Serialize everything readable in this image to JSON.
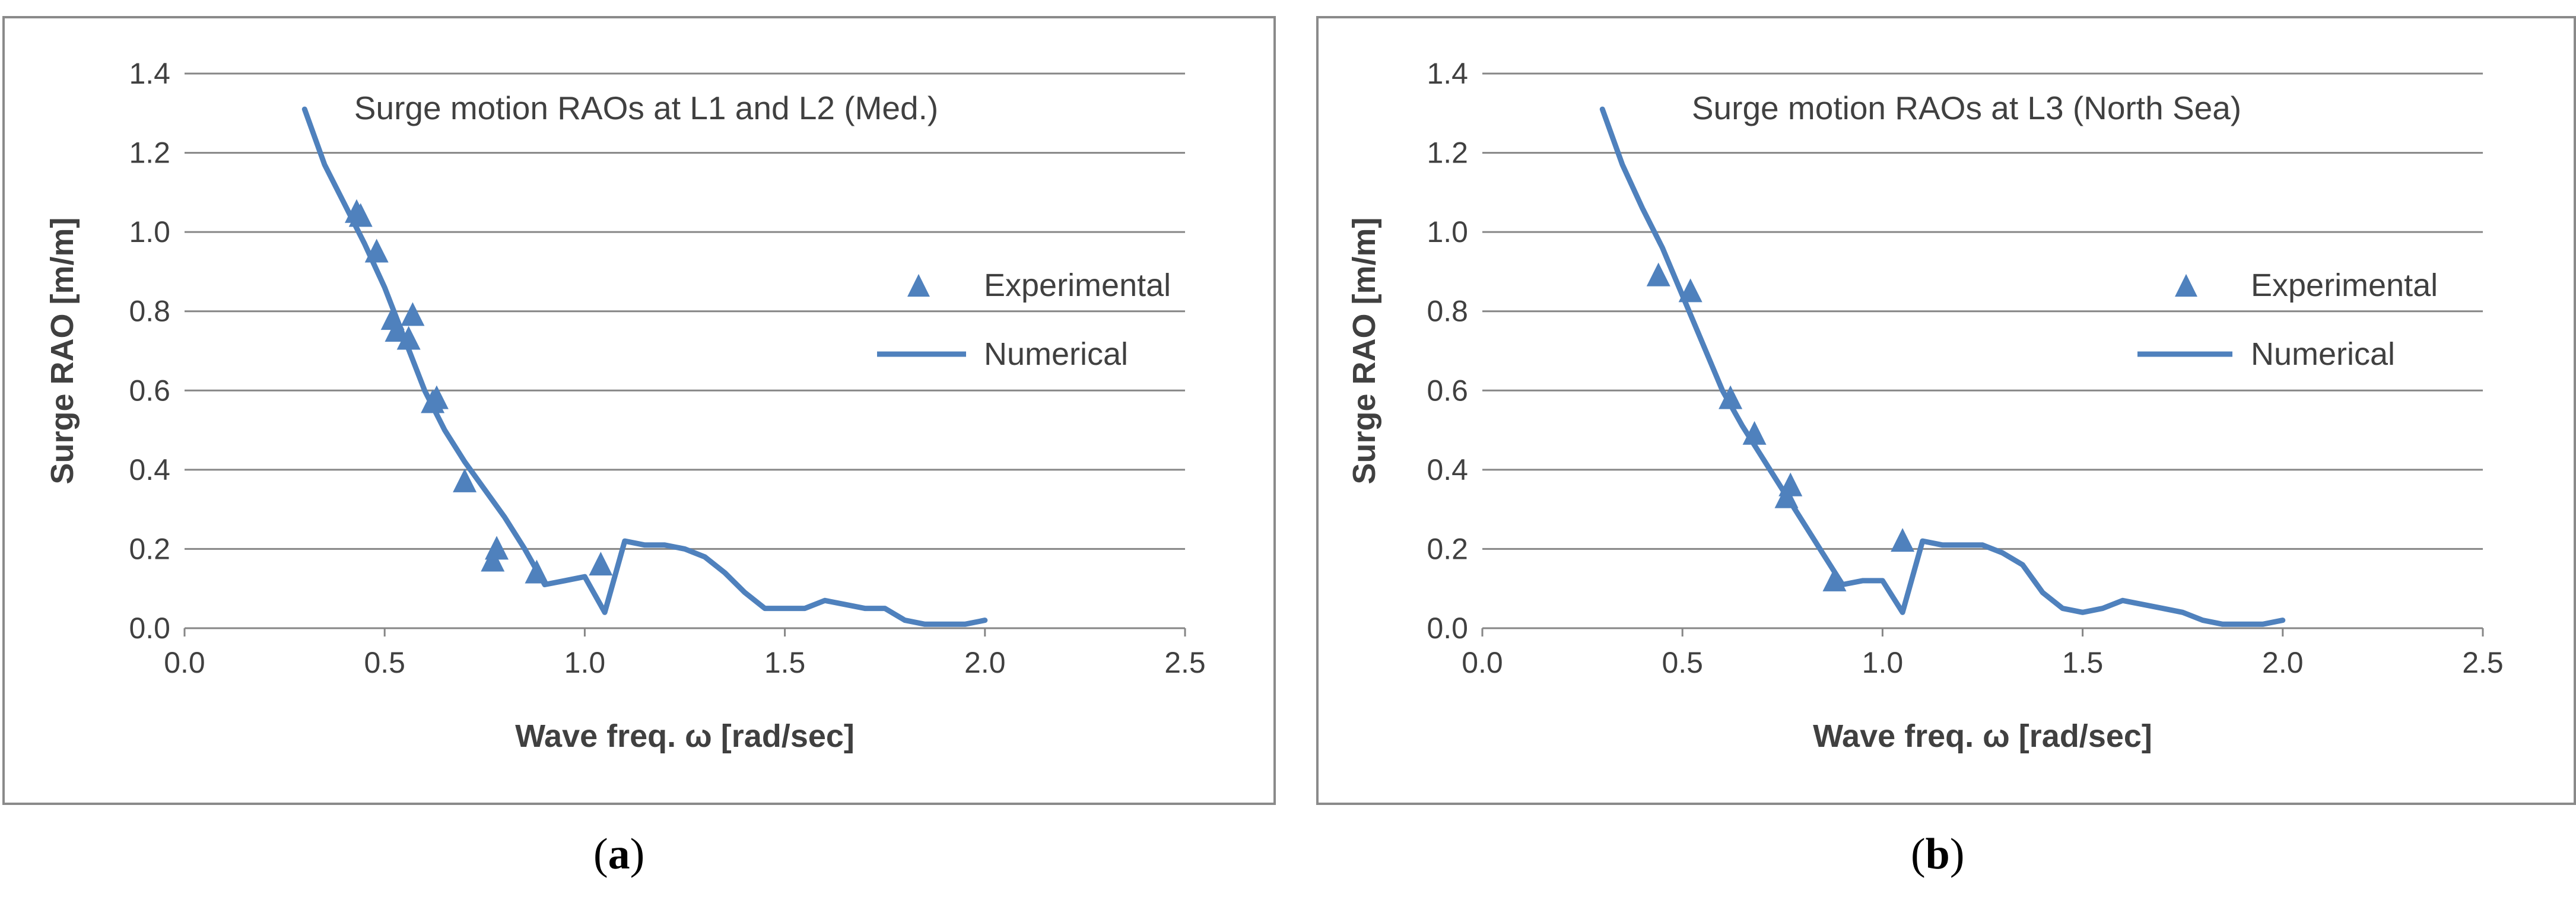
{
  "colors": {
    "series": "#4f81bd",
    "grid": "#868686",
    "text": "#404040"
  },
  "captions": [
    {
      "open": "(",
      "letter": "a",
      "close": ")"
    },
    {
      "open": "(",
      "letter": "b",
      "close": ")"
    }
  ],
  "chart_data": [
    {
      "type": "line",
      "title": "Surge motion RAOs at L1 and L2 (Med.)",
      "xlabel": "Wave freq. ω [rad/sec]",
      "ylabel": "Surge RAO [m/m]",
      "xlim": [
        0,
        2.5
      ],
      "ylim": [
        0,
        1.4
      ],
      "xticks": [
        "0.0",
        "0.5",
        "1.0",
        "1.5",
        "2.0",
        "2.5"
      ],
      "yticks": [
        "0.0",
        "0.2",
        "0.4",
        "0.6",
        "0.8",
        "1.0",
        "1.2",
        "1.4"
      ],
      "grid": true,
      "legend_position": "right",
      "series": [
        {
          "name": "Experimental",
          "marker": "triangle",
          "x": [
            0.43,
            0.44,
            0.48,
            0.52,
            0.53,
            0.56,
            0.57,
            0.62,
            0.63,
            0.7,
            0.77,
            0.78,
            0.88,
            1.04
          ],
          "y": [
            1.05,
            1.04,
            0.95,
            0.78,
            0.75,
            0.73,
            0.79,
            0.57,
            0.58,
            0.37,
            0.17,
            0.2,
            0.14,
            0.16
          ]
        },
        {
          "name": "Numerical",
          "marker": "line",
          "x": [
            0.3,
            0.35,
            0.4,
            0.45,
            0.5,
            0.55,
            0.6,
            0.65,
            0.7,
            0.75,
            0.8,
            0.85,
            0.9,
            0.95,
            1.0,
            1.05,
            1.1,
            1.15,
            1.2,
            1.25,
            1.3,
            1.35,
            1.4,
            1.45,
            1.5,
            1.55,
            1.6,
            1.65,
            1.7,
            1.75,
            1.8,
            1.85,
            1.9,
            1.95,
            2.0
          ],
          "y": [
            1.31,
            1.17,
            1.07,
            0.97,
            0.86,
            0.73,
            0.6,
            0.5,
            0.42,
            0.35,
            0.28,
            0.2,
            0.11,
            0.12,
            0.13,
            0.04,
            0.22,
            0.21,
            0.21,
            0.2,
            0.18,
            0.14,
            0.09,
            0.05,
            0.05,
            0.05,
            0.07,
            0.06,
            0.05,
            0.05,
            0.02,
            0.01,
            0.01,
            0.01,
            0.02
          ]
        }
      ]
    },
    {
      "type": "line",
      "title": "Surge motion RAOs at L3 (North Sea)",
      "xlabel": "Wave freq. ω [rad/sec]",
      "ylabel": "Surge RAO [m/m]",
      "xlim": [
        0,
        2.5
      ],
      "ylim": [
        0,
        1.4
      ],
      "xticks": [
        "0.0",
        "0.5",
        "1.0",
        "1.5",
        "2.0",
        "2.5"
      ],
      "yticks": [
        "0.0",
        "0.2",
        "0.4",
        "0.6",
        "0.8",
        "1.0",
        "1.2",
        "1.4"
      ],
      "grid": true,
      "legend_position": "right",
      "series": [
        {
          "name": "Experimental",
          "marker": "triangle",
          "x": [
            0.44,
            0.52,
            0.62,
            0.68,
            0.76,
            0.77,
            0.88,
            1.05
          ],
          "y": [
            0.89,
            0.85,
            0.58,
            0.49,
            0.33,
            0.36,
            0.12,
            0.22
          ]
        },
        {
          "name": "Numerical",
          "marker": "line",
          "x": [
            0.3,
            0.35,
            0.4,
            0.45,
            0.5,
            0.55,
            0.6,
            0.65,
            0.7,
            0.75,
            0.8,
            0.85,
            0.9,
            0.95,
            1.0,
            1.05,
            1.1,
            1.15,
            1.2,
            1.25,
            1.3,
            1.35,
            1.4,
            1.45,
            1.5,
            1.55,
            1.6,
            1.65,
            1.7,
            1.75,
            1.8,
            1.85,
            1.9,
            1.95,
            2.0
          ],
          "y": [
            1.31,
            1.17,
            1.06,
            0.96,
            0.84,
            0.72,
            0.6,
            0.51,
            0.43,
            0.35,
            0.27,
            0.19,
            0.11,
            0.12,
            0.12,
            0.04,
            0.22,
            0.21,
            0.21,
            0.21,
            0.19,
            0.16,
            0.09,
            0.05,
            0.04,
            0.05,
            0.07,
            0.06,
            0.05,
            0.04,
            0.02,
            0.01,
            0.01,
            0.01,
            0.02
          ]
        }
      ]
    }
  ]
}
